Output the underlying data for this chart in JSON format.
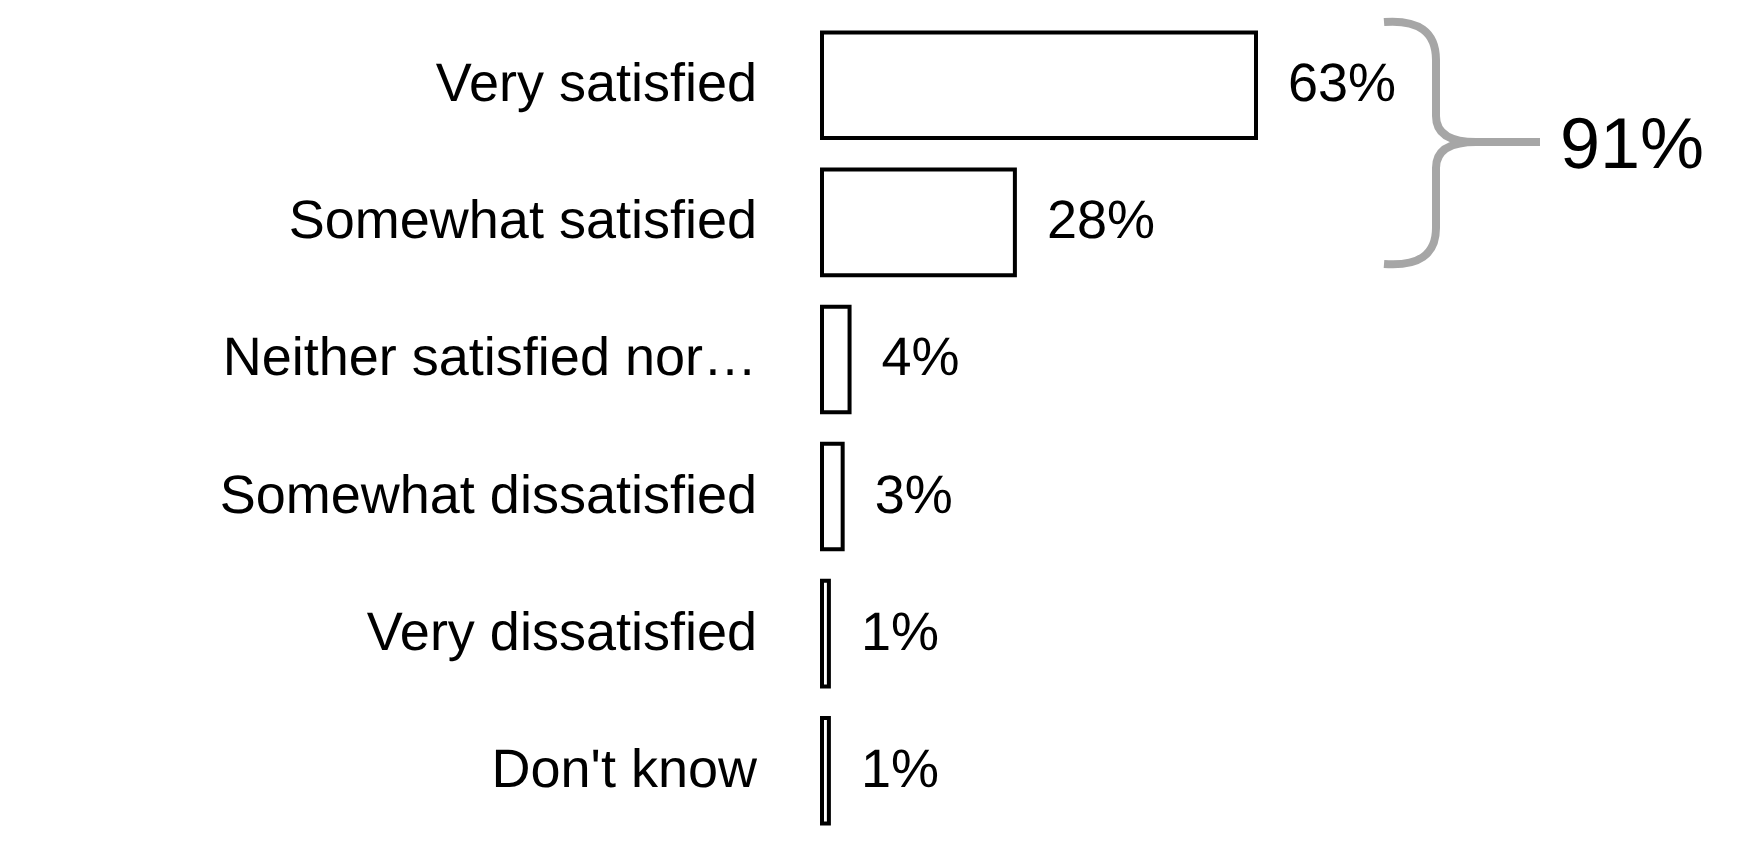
{
  "chart_data": {
    "type": "bar",
    "orientation": "horizontal",
    "categories": [
      "Very satisfied",
      "Somewhat satisfied",
      "Neither satisfied nor…",
      "Somewhat dissatisfied",
      "Very dissatisfied",
      "Don't know"
    ],
    "values": [
      63,
      28,
      4,
      3,
      1,
      1
    ],
    "value_labels": [
      "63%",
      "28%",
      "4%",
      "3%",
      "1%",
      "1%"
    ],
    "color": "#ffffff",
    "annotations": [
      "91%"
    ]
  }
}
